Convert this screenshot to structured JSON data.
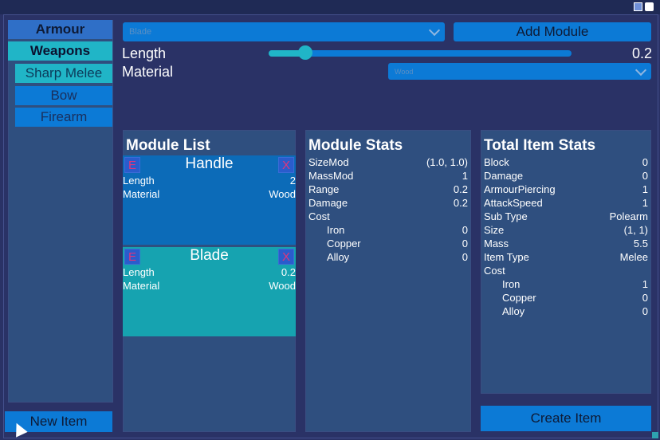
{
  "sidebar": {
    "tabs": [
      "Armour",
      "Weapons"
    ],
    "subtabs": [
      "Sharp Melee",
      "Bow",
      "Firearm"
    ],
    "new_item": "New Item"
  },
  "editor": {
    "module_dropdown": "Blade",
    "add_module": "Add Module",
    "length_label": "Length",
    "length_value": "0.2",
    "length_slider_fraction": 0.12,
    "material_label": "Material",
    "material_dropdown": "Wood"
  },
  "module_list": {
    "title": "Module List",
    "modules": [
      {
        "name": "Handle",
        "e": "E",
        "x": "X",
        "rows": [
          [
            "Length",
            "2"
          ],
          [
            "Material",
            "Wood"
          ]
        ]
      },
      {
        "name": "Blade",
        "e": "E",
        "x": "X",
        "rows": [
          [
            "Length",
            "0.2"
          ],
          [
            "Material",
            "Wood"
          ]
        ]
      }
    ]
  },
  "module_stats": {
    "title": "Module Stats",
    "rows": [
      [
        "SizeMod",
        "(1.0, 1.0)"
      ],
      [
        "MassMod",
        "1"
      ],
      [
        "Range",
        "0.2"
      ],
      [
        "Damage",
        "0.2"
      ],
      [
        "Cost",
        ""
      ],
      [
        "Iron",
        "0"
      ],
      [
        "Copper",
        "0"
      ],
      [
        "Alloy",
        "0"
      ]
    ]
  },
  "total_stats": {
    "title": "Total Item Stats",
    "rows": [
      [
        "Block",
        "0"
      ],
      [
        "Damage",
        "0"
      ],
      [
        "ArmourPiercing",
        "1"
      ],
      [
        "AttackSpeed",
        "1"
      ],
      [
        "Sub Type",
        "Polearm"
      ],
      [
        "Size",
        "(1, 1)"
      ],
      [
        "Mass",
        "5.5"
      ],
      [
        "Item Type",
        "Melee"
      ],
      [
        "Cost",
        ""
      ],
      [
        "Iron",
        "1"
      ],
      [
        "Copper",
        "0"
      ],
      [
        "Alloy",
        "0"
      ]
    ]
  },
  "create_item": "Create Item",
  "colors": {
    "background": "#2a3266",
    "panel": "#2f4f7f",
    "button_blue": "#0c7ad6",
    "teal": "#20b5c7"
  }
}
